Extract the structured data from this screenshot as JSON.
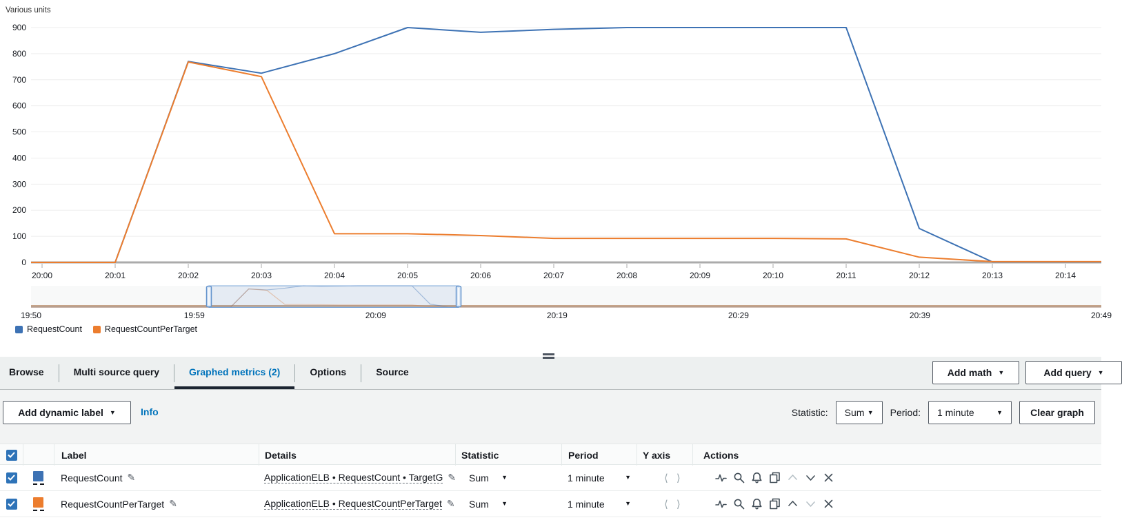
{
  "chart_data": {
    "type": "line",
    "title": "Various units",
    "ylabel": "Various units",
    "ylim": [
      0,
      900
    ],
    "y_ticks": [
      0,
      100,
      200,
      300,
      400,
      500,
      600,
      700,
      800,
      900
    ],
    "x_ticks": [
      "20:00",
      "20:01",
      "20:02",
      "20:03",
      "20:04",
      "20:05",
      "20:06",
      "20:07",
      "20:08",
      "20:09",
      "20:10",
      "20:11",
      "20:12",
      "20:13",
      "20:14"
    ],
    "grid": true,
    "legend_position": "bottom-left",
    "series": [
      {
        "name": "RequestCount",
        "color": "#3d72b4",
        "values": [
          0,
          0,
          770,
          725,
          800,
          900,
          882,
          893,
          900,
          900,
          900,
          900,
          130,
          2,
          2
        ]
      },
      {
        "name": "RequestCountPerTarget",
        "color": "#ec7d2e",
        "values": [
          0,
          0,
          768,
          712,
          110,
          110,
          103,
          92,
          92,
          92,
          92,
          90,
          20,
          3,
          3
        ]
      }
    ],
    "brush": {
      "labels": [
        "19:50",
        "19:59",
        "20:09",
        "20:19",
        "20:29",
        "20:39",
        "20:49"
      ],
      "selection_start_label": "19:59",
      "selection_end_label": "20:13"
    }
  },
  "legend": [
    {
      "label": "RequestCount",
      "color": "#3d72b4"
    },
    {
      "label": "RequestCountPerTarget",
      "color": "#ec7d2e"
    }
  ],
  "tab_bar": {
    "tabs": [
      {
        "label": "Browse"
      },
      {
        "label": "Multi source query"
      },
      {
        "label": "Graphed metrics (2)"
      },
      {
        "label": "Options"
      },
      {
        "label": "Source"
      }
    ],
    "active": "Graphed metrics (2)",
    "add_math_label": "Add math",
    "add_query_label": "Add query"
  },
  "toolbar": {
    "add_dynamic_label": "Add dynamic label",
    "info_label": "Info",
    "statistic_label": "Statistic:",
    "statistic_value": "Sum",
    "period_label": "Period:",
    "period_value": "1 minute",
    "clear_graph_label": "Clear graph"
  },
  "table": {
    "headers": {
      "label": "Label",
      "details": "Details",
      "statistic": "Statistic",
      "period": "Period",
      "yaxis": "Y axis",
      "actions": "Actions"
    },
    "rows": [
      {
        "checked": true,
        "color": "#3d72b4",
        "label": "RequestCount",
        "details": "ApplicationELB • RequestCount • TargetG",
        "statistic": "Sum",
        "period": "1 minute"
      },
      {
        "checked": true,
        "color": "#ec7d2e",
        "label": "RequestCountPerTarget",
        "details": "ApplicationELB • RequestCountPerTarget",
        "statistic": "Sum",
        "period": "1 minute"
      }
    ]
  }
}
